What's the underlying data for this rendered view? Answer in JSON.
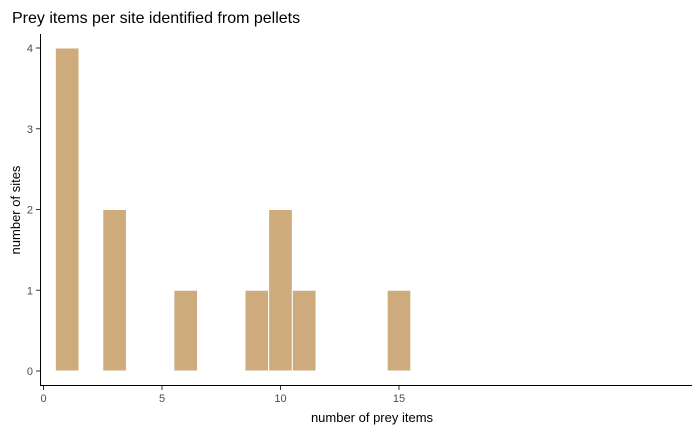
{
  "chart_data": {
    "type": "bar",
    "title": "Prey items per site identified from pellets",
    "xlabel": "number of prey items",
    "ylabel": "number of sites",
    "bin_width": 1,
    "x": [
      1,
      3,
      6,
      9,
      10,
      11,
      15
    ],
    "values": [
      4,
      2,
      1,
      1,
      2,
      1,
      1
    ],
    "xlim": [
      0,
      16
    ],
    "ylim": [
      0,
      4
    ],
    "x_ticks": [
      0,
      5,
      10,
      15
    ],
    "y_ticks": [
      0,
      1,
      2,
      3,
      4
    ],
    "bar_color": "#cdab7d",
    "grid": false,
    "legend": "none"
  }
}
